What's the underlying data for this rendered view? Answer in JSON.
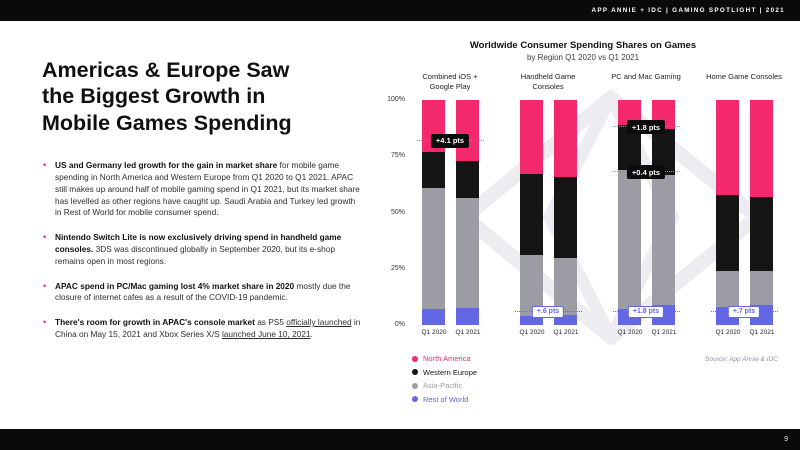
{
  "top_bar": {
    "brand_line": "APP ANNIE + IDC   |   GAMING SPOTLIGHT   |   2021"
  },
  "footer": {
    "page_number": "9"
  },
  "left_panel": {
    "headline": "Americas & Europe Saw\nthe Biggest Growth in\nMobile Games Spending",
    "bullet_color": "#F0275F",
    "bullets": [
      {
        "segments": [
          {
            "text": "US and Germany led growth for the gain in market share",
            "bold": true
          },
          {
            "text": " for mobile game spending in North America and Western Europe from Q1 2020 to Q1 2021. APAC still makes up around half of mobile gaming spend in Q1 2021, but its market share has levelled as other regions have caught up. Saudi Arabia and Turkey led growth in Rest of World for mobile consumer spend."
          }
        ]
      },
      {
        "segments": [
          {
            "text": "Nintendo Switch Lite is now exclusively driving spend in handheld game consoles.",
            "bold": true
          },
          {
            "text": " 3DS was discontinued globally in September 2020, but its e-shop remains open in most regions."
          }
        ]
      },
      {
        "segments": [
          {
            "text": "APAC spend in PC/Mac gaming lost 4% market share in 2020",
            "bold": true
          },
          {
            "text": " mostly due the closure of internet cafes as a result of the COVID-19 pandemic."
          }
        ]
      },
      {
        "segments": [
          {
            "text": "There's room for growth in APAC's console market",
            "bold": true
          },
          {
            "text": " as PS5 "
          },
          {
            "text": "officially launched",
            "underline": true
          },
          {
            "text": " in China on May 15, 2021 and Xbox Series X/S "
          },
          {
            "text": "launched June 10, 2021",
            "underline": true
          },
          {
            "text": "."
          }
        ]
      }
    ]
  },
  "chart_data": {
    "type": "bar",
    "variant": "stacked-100-percent",
    "title": "Worldwide Consumer Spending Shares on Games",
    "subtitle": "by Region Q1 2020 vs Q1 2021",
    "y_ticks": [
      "100%",
      "75%",
      "50%",
      "25%",
      "0%"
    ],
    "ylim": [
      0,
      100
    ],
    "legend_position": "bottom-left",
    "source": "Source: App Annie & IDC",
    "series": [
      {
        "key": "north_america",
        "name": "North America",
        "color": "#F4286D"
      },
      {
        "key": "western_europe",
        "name": "Western Europe",
        "color": "#151515"
      },
      {
        "key": "asia_pacific",
        "name": "Asia-Pacific",
        "color": "#9C9CA4"
      },
      {
        "key": "rest_of_world",
        "name": "Rest of World",
        "color": "#6467E4"
      }
    ],
    "stack_order_bottom_to_top": [
      "rest_of_world",
      "asia_pacific",
      "western_europe",
      "north_america"
    ],
    "groups": [
      {
        "label": "Combined iOS + Google Play",
        "bars": [
          {
            "label": "Q1 2020",
            "values": {
              "north_america": 23,
              "western_europe": 16,
              "asia_pacific": 54,
              "rest_of_world": 7
            }
          },
          {
            "label": "Q1 2021",
            "values": {
              "north_america": 27.1,
              "western_europe": 16.5,
              "asia_pacific": 49,
              "rest_of_world": 7.4
            }
          }
        ],
        "callouts": [
          {
            "text": "+4.1 pts",
            "style": "black",
            "at_percent": 82
          }
        ]
      },
      {
        "label": "Handheld Game Consoles",
        "bars": [
          {
            "label": "Q1 2020",
            "values": {
              "north_america": 33,
              "western_europe": 36,
              "asia_pacific": 27,
              "rest_of_world": 4
            }
          },
          {
            "label": "Q1 2021",
            "values": {
              "north_america": 34,
              "western_europe": 36,
              "asia_pacific": 25.4,
              "rest_of_world": 4.6
            }
          }
        ],
        "callouts": [
          {
            "text": "+.6 pts",
            "style": "purple",
            "at_percent": 6
          }
        ]
      },
      {
        "label": "PC and Mac Gaming",
        "bars": [
          {
            "label": "Q1 2020",
            "values": {
              "north_america": 11,
              "western_europe": 20,
              "asia_pacific": 62,
              "rest_of_world": 7
            }
          },
          {
            "label": "Q1 2021",
            "values": {
              "north_america": 12.8,
              "western_europe": 20.4,
              "asia_pacific": 58,
              "rest_of_world": 8.8
            }
          }
        ],
        "callouts": [
          {
            "text": "+1.8 pts",
            "style": "black",
            "at_percent": 88
          },
          {
            "text": "+0.4 pts",
            "style": "black",
            "at_percent": 68
          },
          {
            "text": "+1.8 pts",
            "style": "purple",
            "at_percent": 6
          }
        ]
      },
      {
        "label": "Home Game Consoles",
        "bars": [
          {
            "label": "Q1 2020",
            "values": {
              "north_america": 42,
              "western_europe": 34,
              "asia_pacific": 16,
              "rest_of_world": 8
            }
          },
          {
            "label": "Q1 2021",
            "values": {
              "north_america": 43,
              "western_europe": 33,
              "asia_pacific": 15.3,
              "rest_of_world": 8.7
            }
          }
        ],
        "callouts": [
          {
            "text": "+.7 pts",
            "style": "purple",
            "at_percent": 6
          }
        ]
      }
    ]
  }
}
